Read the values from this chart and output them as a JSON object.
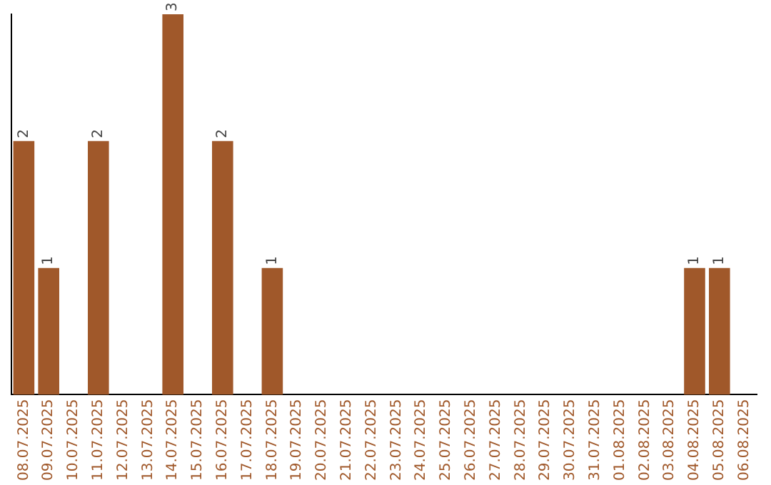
{
  "chart_data": {
    "type": "bar",
    "categories": [
      "08.07.2025",
      "09.07.2025",
      "10.07.2025",
      "11.07.2025",
      "12.07.2025",
      "13.07.2025",
      "14.07.2025",
      "15.07.2025",
      "16.07.2025",
      "17.07.2025",
      "18.07.2025",
      "19.07.2025",
      "20.07.2025",
      "21.07.2025",
      "22.07.2025",
      "23.07.2025",
      "24.07.2025",
      "25.07.2025",
      "26.07.2025",
      "27.07.2025",
      "28.07.2025",
      "29.07.2025",
      "30.07.2025",
      "31.07.2025",
      "01.08.2025",
      "02.08.2025",
      "03.08.2025",
      "04.08.2025",
      "05.08.2025",
      "06.08.2025"
    ],
    "values": [
      2,
      1,
      0,
      2,
      0,
      0,
      3,
      0,
      2,
      0,
      1,
      0,
      0,
      0,
      0,
      0,
      0,
      0,
      0,
      0,
      0,
      0,
      0,
      0,
      0,
      0,
      0,
      1,
      1,
      0
    ],
    "value_labels": [
      "2",
      "1",
      null,
      "2",
      null,
      null,
      "3",
      null,
      "2",
      null,
      "1",
      null,
      null,
      null,
      null,
      null,
      null,
      null,
      null,
      null,
      null,
      null,
      null,
      null,
      null,
      null,
      null,
      "1",
      "1",
      null
    ],
    "color": "#a0582a",
    "grid": false,
    "legend": false
  }
}
